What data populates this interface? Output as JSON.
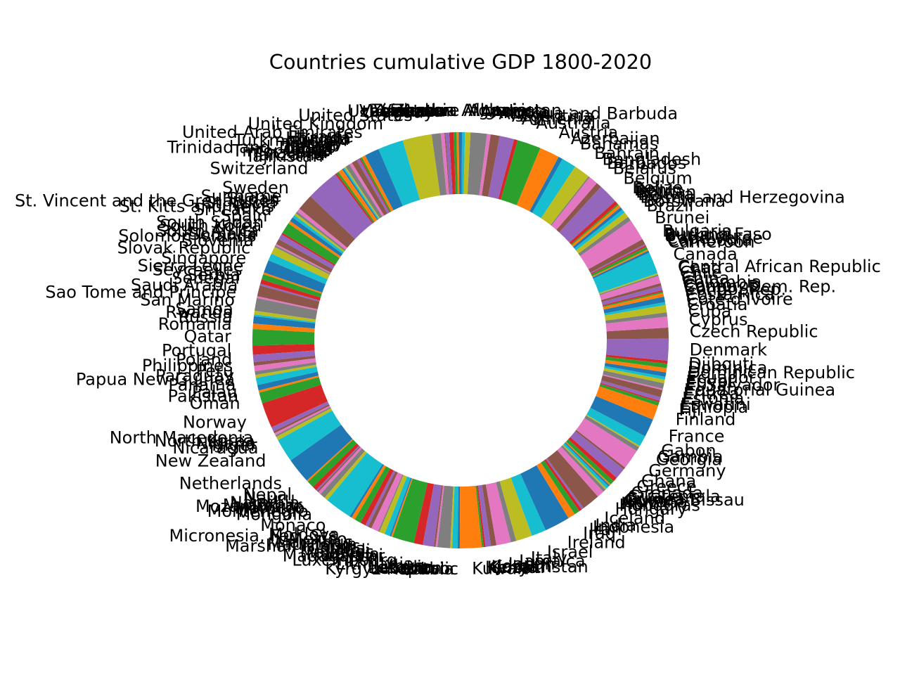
{
  "chart_data": {
    "type": "pie",
    "title": "Countries cumulative GDP 1800-2020",
    "donut": true,
    "start_angle_deg": 90,
    "direction": "counterclockwise",
    "slices": [
      {
        "label": "Zimbabwe",
        "value": 0.5
      },
      {
        "label": "Zambia",
        "value": 0.6
      },
      {
        "label": "Yemen",
        "value": 0.8
      },
      {
        "label": "Vietnam",
        "value": 1.2
      },
      {
        "label": "Venezuela",
        "value": 1.0
      },
      {
        "label": "Vanuatu",
        "value": 0.3
      },
      {
        "label": "Uzbekistan",
        "value": 1.0
      },
      {
        "label": "Uruguay",
        "value": 2.5
      },
      {
        "label": "United States",
        "value": 8.0
      },
      {
        "label": "United Kingdom",
        "value": 7.0
      },
      {
        "label": "United Arab Emirates",
        "value": 4.0
      },
      {
        "label": "Ukraine",
        "value": 1.0
      },
      {
        "label": "Uganda",
        "value": 0.5
      },
      {
        "label": "Tuvalu",
        "value": 0.3
      },
      {
        "label": "Turkmenistan",
        "value": 0.8
      },
      {
        "label": "Turkey",
        "value": 1.5
      },
      {
        "label": "Tunisia",
        "value": 0.8
      },
      {
        "label": "Trinidad and Tobago",
        "value": 1.2
      },
      {
        "label": "Tonga",
        "value": 0.4
      },
      {
        "label": "Togo",
        "value": 0.4
      },
      {
        "label": "Timor-Leste",
        "value": 0.4
      },
      {
        "label": "Thailand",
        "value": 1.2
      },
      {
        "label": "Tanzania",
        "value": 0.6
      },
      {
        "label": "Tajikistan",
        "value": 0.5
      },
      {
        "label": "Switzerland",
        "value": 9.0
      },
      {
        "label": "Sweden",
        "value": 4.5
      },
      {
        "label": "Suriname",
        "value": 1.0
      },
      {
        "label": "Sudan",
        "value": 0.6
      },
      {
        "label": "St. Vincent and the Grenadines",
        "value": 0.6
      },
      {
        "label": "St. Lucia",
        "value": 0.8
      },
      {
        "label": "St. Kitts and Nevis",
        "value": 1.2
      },
      {
        "label": "Sri Lanka",
        "value": 0.8
      },
      {
        "label": "Spain",
        "value": 3.0
      },
      {
        "label": "South Sudan",
        "value": 0.5
      },
      {
        "label": "South Korea",
        "value": 1.5
      },
      {
        "label": "South Africa",
        "value": 1.5
      },
      {
        "label": "Somalia",
        "value": 0.4
      },
      {
        "label": "Solomon Islands",
        "value": 0.5
      },
      {
        "label": "Slovenia",
        "value": 2.0
      },
      {
        "label": "Slovak Republic",
        "value": 2.0
      },
      {
        "label": "Singapore",
        "value": 3.5
      },
      {
        "label": "Sierra Leone",
        "value": 0.5
      },
      {
        "label": "Seychelles",
        "value": 1.5
      },
      {
        "label": "Serbia",
        "value": 1.2
      },
      {
        "label": "Senegal",
        "value": 0.5
      },
      {
        "label": "Saudi Arabia",
        "value": 3.0
      },
      {
        "label": "Sao Tome and Principe",
        "value": 0.5
      },
      {
        "label": "San Marino",
        "value": 3.5
      },
      {
        "label": "Samoa",
        "value": 1.0
      },
      {
        "label": "Rwanda",
        "value": 0.5
      },
      {
        "label": "Russia",
        "value": 2.0
      },
      {
        "label": "Romania",
        "value": 1.5
      },
      {
        "label": "Qatar",
        "value": 4.5
      },
      {
        "label": "Portugal",
        "value": 2.5
      },
      {
        "label": "Poland",
        "value": 2.0
      },
      {
        "label": "Philippines",
        "value": 1.0
      },
      {
        "label": "Peru",
        "value": 1.5
      },
      {
        "label": "Paraguay",
        "value": 1.0
      },
      {
        "label": "Papua New Guinea",
        "value": 0.8
      },
      {
        "label": "Panama",
        "value": 2.0
      },
      {
        "label": "Palau",
        "value": 1.5
      },
      {
        "label": "Pakistan",
        "value": 0.6
      },
      {
        "label": "Oman",
        "value": 3.0
      },
      {
        "label": "Norway",
        "value": 7.0
      },
      {
        "label": "North Macedonia",
        "value": 1.2
      },
      {
        "label": "North Korea",
        "value": 0.6
      },
      {
        "label": "Nigeria",
        "value": 0.6
      },
      {
        "label": "Niger",
        "value": 0.5
      },
      {
        "label": "Nicaragua",
        "value": 1.0
      },
      {
        "label": "New Zealand",
        "value": 6.5
      },
      {
        "label": "Netherlands",
        "value": 7.0
      },
      {
        "label": "Nepal",
        "value": 0.4
      },
      {
        "label": "Nauru",
        "value": 2.0
      },
      {
        "label": "Namibia",
        "value": 1.2
      },
      {
        "label": "Myanmar",
        "value": 0.4
      },
      {
        "label": "Mozambique",
        "value": 0.4
      },
      {
        "label": "Morocco",
        "value": 0.8
      },
      {
        "label": "Montenegro",
        "value": 1.5
      },
      {
        "label": "Mongolia",
        "value": 1.0
      },
      {
        "label": "Monaco",
        "value": 7.5
      },
      {
        "label": "Moldova",
        "value": 0.6
      },
      {
        "label": "Micronesia, Fed. Sts.",
        "value": 1.0
      },
      {
        "label": "Mexico",
        "value": 1.8
      },
      {
        "label": "Mauritius",
        "value": 1.5
      },
      {
        "label": "Mauritania",
        "value": 0.8
      },
      {
        "label": "Marshall Islands",
        "value": 1.0
      },
      {
        "label": "Malta",
        "value": 2.0
      },
      {
        "label": "Mali",
        "value": 0.4
      },
      {
        "label": "Maldives",
        "value": 1.5
      },
      {
        "label": "Malaysia",
        "value": 1.5
      },
      {
        "label": "Malawi",
        "value": 0.4
      },
      {
        "label": "Madagascar",
        "value": 0.4
      },
      {
        "label": "Luxembourg",
        "value": 6.0
      },
      {
        "label": "Lithuania",
        "value": 2.5
      },
      {
        "label": "Libya",
        "value": 3.0
      },
      {
        "label": "Liberia",
        "value": 0.5
      },
      {
        "label": "Lesotho",
        "value": 0.5
      },
      {
        "label": "Lebanon",
        "value": 3.5
      },
      {
        "label": "Lao",
        "value": 0.5
      },
      {
        "label": "Latvia",
        "value": 1.5
      },
      {
        "label": "Kyrgyz Republic",
        "value": 0.6
      },
      {
        "label": "Kuwait",
        "value": 6.0
      },
      {
        "label": "Kiribati",
        "value": 0.5
      },
      {
        "label": "Kenya",
        "value": 0.5
      },
      {
        "label": "Kazakhstan",
        "value": 1.5
      },
      {
        "label": "Jordan",
        "value": 1.5
      },
      {
        "label": "Japan",
        "value": 4.0
      },
      {
        "label": "Jamaica",
        "value": 1.5
      },
      {
        "label": "Italy",
        "value": 4.5
      },
      {
        "label": "Israel",
        "value": 4.0
      },
      {
        "label": "Ireland",
        "value": 7.0
      },
      {
        "label": "Iraq",
        "value": 2.0
      },
      {
        "label": "Iran",
        "value": 1.5
      },
      {
        "label": "Indonesia",
        "value": 0.8
      },
      {
        "label": "India",
        "value": 0.6
      },
      {
        "label": "Iceland",
        "value": 5.0
      },
      {
        "label": "Hungary",
        "value": 2.0
      },
      {
        "label": "Honduras",
        "value": 0.8
      },
      {
        "label": "Haiti",
        "value": 0.4
      },
      {
        "label": "Guyana",
        "value": 0.8
      },
      {
        "label": "Guinea-Bissau",
        "value": 0.4
      },
      {
        "label": "Guinea",
        "value": 0.4
      },
      {
        "label": "Guatemala",
        "value": 1.2
      },
      {
        "label": "Grenada",
        "value": 1.2
      },
      {
        "label": "Greece",
        "value": 3.0
      },
      {
        "label": "Ghana",
        "value": 0.6
      },
      {
        "label": "Germany",
        "value": 5.5
      },
      {
        "label": "Georgia",
        "value": 1.2
      },
      {
        "label": "Gambia",
        "value": 0.4
      },
      {
        "label": "Gabon",
        "value": 3.0
      },
      {
        "label": "France",
        "value": 5.0
      },
      {
        "label": "Finland",
        "value": 4.0
      },
      {
        "label": "Fiji",
        "value": 1.0
      },
      {
        "label": "Ethiopia",
        "value": 0.4
      },
      {
        "label": "Eswatini",
        "value": 1.0
      },
      {
        "label": "Estonia",
        "value": 2.0
      },
      {
        "label": "Eritrea",
        "value": 0.4
      },
      {
        "label": "Equatorial Guinea",
        "value": 1.5
      },
      {
        "label": "El Salvador",
        "value": 1.0
      },
      {
        "label": "Egypt",
        "value": 0.8
      },
      {
        "label": "Ecuador",
        "value": 1.2
      },
      {
        "label": "Dominican Republic",
        "value": 1.2
      },
      {
        "label": "Dominica",
        "value": 1.2
      },
      {
        "label": "Djibouti",
        "value": 0.8
      },
      {
        "label": "Denmark",
        "value": 6.0
      },
      {
        "label": "Czech Republic",
        "value": 3.0
      },
      {
        "label": "Cyprus",
        "value": 3.0
      },
      {
        "label": "Cuba",
        "value": 1.2
      },
      {
        "label": "Croatia",
        "value": 2.0
      },
      {
        "label": "Cote d'Ivoire",
        "value": 0.8
      },
      {
        "label": "Costa Rica",
        "value": 1.5
      },
      {
        "label": "Congo, Rep.",
        "value": 1.0
      },
      {
        "label": "Congo, Dem. Rep.",
        "value": 0.4
      },
      {
        "label": "Comoros",
        "value": 0.4
      },
      {
        "label": "Colombia",
        "value": 1.2
      },
      {
        "label": "China",
        "value": 0.8
      },
      {
        "label": "Chile",
        "value": 2.0
      },
      {
        "label": "Chad",
        "value": 0.4
      },
      {
        "label": "Central African Republic",
        "value": 0.4
      },
      {
        "label": "Canada",
        "value": 6.0
      },
      {
        "label": "Cameroon",
        "value": 0.6
      },
      {
        "label": "Cambodia",
        "value": 0.4
      },
      {
        "label": "Cape Verde",
        "value": 0.8
      },
      {
        "label": "Burundi",
        "value": 0.4
      },
      {
        "label": "Burkina Faso",
        "value": 0.4
      },
      {
        "label": "Bulgaria",
        "value": 1.5
      },
      {
        "label": "Brunei",
        "value": 6.0
      },
      {
        "label": "Brazil",
        "value": 1.2
      },
      {
        "label": "Botswana",
        "value": 1.5
      },
      {
        "label": "Bosnia and Herzegovina",
        "value": 1.0
      },
      {
        "label": "Bolivia",
        "value": 0.8
      },
      {
        "label": "Bhutan",
        "value": 0.8
      },
      {
        "label": "Benin",
        "value": 0.4
      },
      {
        "label": "Belize",
        "value": 1.0
      },
      {
        "label": "Belgium",
        "value": 5.5
      },
      {
        "label": "Belarus",
        "value": 1.5
      },
      {
        "label": "Barbados",
        "value": 2.5
      },
      {
        "label": "Bangladesh",
        "value": 0.4
      },
      {
        "label": "Bahrain",
        "value": 4.5
      },
      {
        "label": "Bahamas",
        "value": 4.0
      },
      {
        "label": "Azerbaijan",
        "value": 1.2
      },
      {
        "label": "Austria",
        "value": 5.5
      },
      {
        "label": "Australia",
        "value": 6.5
      },
      {
        "label": "Armenia",
        "value": 1.0
      },
      {
        "label": "Argentina",
        "value": 4.0
      },
      {
        "label": "Antigua and Barbuda",
        "value": 2.5
      },
      {
        "label": "Angola",
        "value": 1.0
      },
      {
        "label": "Andorra",
        "value": 4.5
      },
      {
        "label": "Algeria",
        "value": 1.5
      },
      {
        "label": "Albania",
        "value": 0.8
      },
      {
        "label": "Afghanistan",
        "value": 0.4
      }
    ],
    "colors": [
      "#1f77b4",
      "#ff7f0e",
      "#2ca02c",
      "#d62728",
      "#9467bd",
      "#8c564b",
      "#e377c2",
      "#7f7f7f",
      "#bcbd22",
      "#17becf"
    ],
    "grid": false,
    "legend": "none"
  }
}
